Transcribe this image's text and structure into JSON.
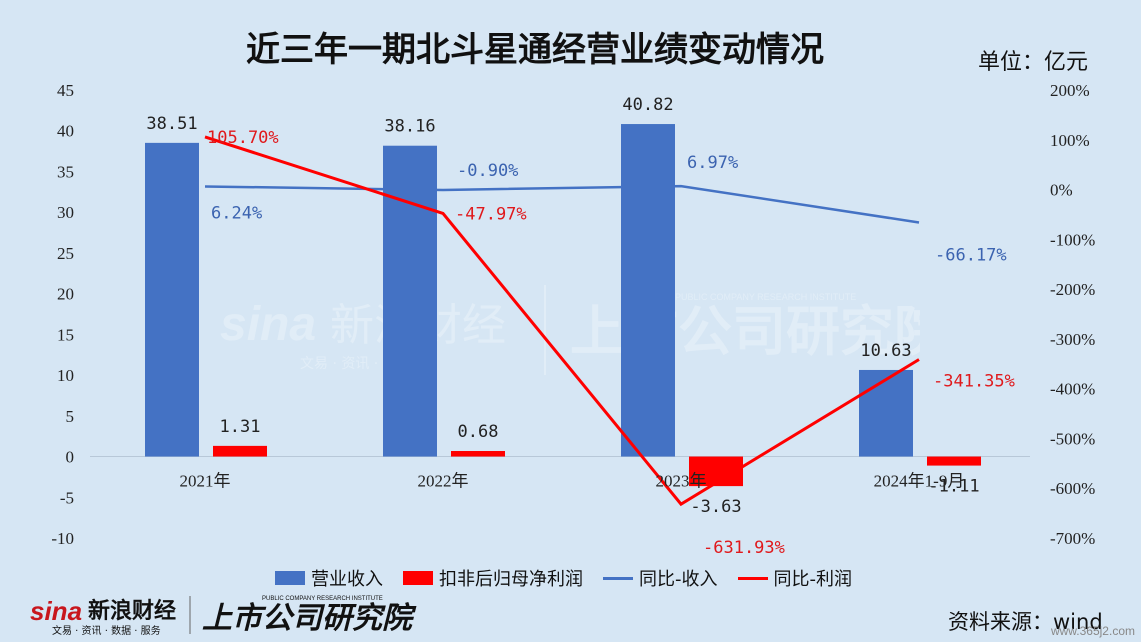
{
  "title": "近三年一期北斗星通经营业绩变动情况",
  "unit": "单位：亿元",
  "source": "资料来源：wind",
  "corner_site": "www.365j2.com",
  "watermark": {
    "brand_cn": "新浪财经",
    "brand_sub": "文易 · 资讯 · 服务",
    "research": "上市公司研究院",
    "research_en": "PUBLIC COMPANY RESEARCH INSTITUTE"
  },
  "colors": {
    "revenue": "#4472c4",
    "profit": "#ff0000",
    "revenue_yoy": "#4472c4",
    "profit_yoy": "#ff0000",
    "background": "#d6e6f4"
  },
  "chart_data": {
    "type": "bar",
    "title": "近三年一期北斗星通经营业绩变动情况",
    "categories": [
      "2021年",
      "2022年",
      "2023年",
      "2024年1-9月"
    ],
    "y_left": {
      "ticks": [
        "45",
        "40",
        "35",
        "30",
        "25",
        "20",
        "15",
        "10",
        "5",
        "0",
        "-5",
        "-10"
      ],
      "ylim": [
        -10,
        45
      ]
    },
    "y_right": {
      "ticks": [
        "200%",
        "100%",
        "0%",
        "-100%",
        "-200%",
        "-300%",
        "-400%",
        "-500%",
        "-600%",
        "-700%"
      ],
      "ylim": [
        -700,
        200
      ]
    },
    "series": [
      {
        "name": "营业收入",
        "type": "bar",
        "axis": "left",
        "values": [
          38.51,
          38.16,
          40.82,
          10.63
        ],
        "labels": [
          "38.51",
          "38.16",
          "40.82",
          "10.63"
        ]
      },
      {
        "name": "扣非后归母净利润",
        "type": "bar",
        "axis": "left",
        "values": [
          1.31,
          0.68,
          -3.63,
          -1.11
        ],
        "labels": [
          "1.31",
          "0.68",
          "-3.63",
          "-1.11"
        ]
      },
      {
        "name": "同比-收入",
        "type": "line",
        "axis": "right",
        "values": [
          6.24,
          -0.9,
          6.97,
          -66.17
        ],
        "labels": [
          "6.24%",
          "-0.90%",
          "6.97%",
          "-66.17%"
        ]
      },
      {
        "name": "同比-利润",
        "type": "line",
        "axis": "right",
        "values": [
          105.7,
          -47.97,
          -631.93,
          -341.35
        ],
        "labels": [
          "105.70%",
          "-47.97%",
          "-631.93%",
          "-341.35%"
        ]
      }
    ],
    "legend_position": "bottom",
    "grid": false
  }
}
